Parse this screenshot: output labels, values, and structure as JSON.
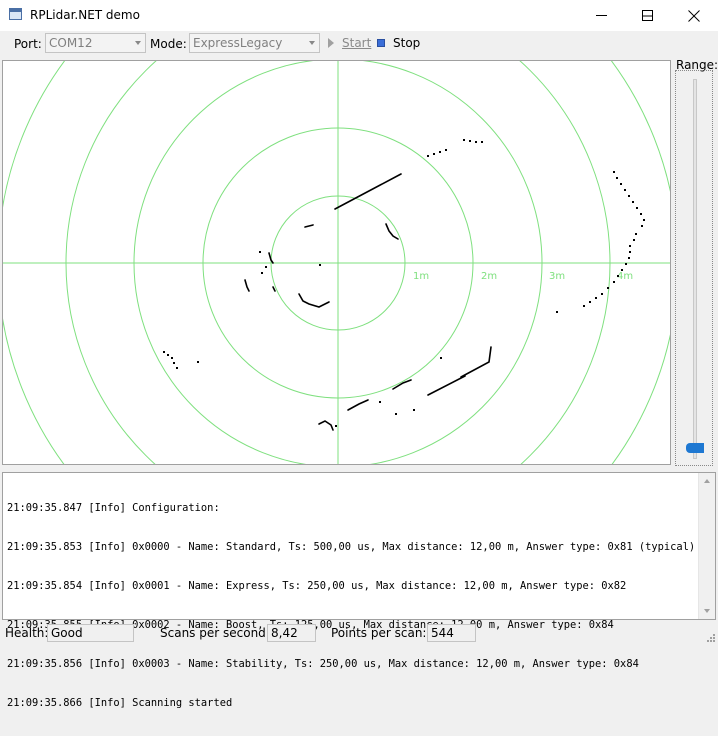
{
  "window": {
    "title": "RPLidar.NET demo",
    "icon": "app-window-icon"
  },
  "toolbar": {
    "port_label": "Port:",
    "port_value": "COM12",
    "mode_label": "Mode:",
    "mode_value": "ExpressLegacy",
    "start_label": "Start",
    "stop_label": "Stop"
  },
  "plot": {
    "ring_labels": [
      "1m",
      "2m",
      "3m",
      "4m"
    ],
    "grid_color": "#7fe07f"
  },
  "range": {
    "label": "Range:",
    "thumb_color": "#1e78d2"
  },
  "log": {
    "lines": [
      "21:09:35.847 [Info] Configuration:",
      "21:09:35.853 [Info] 0x0000 - Name: Standard, Ts: 500,00 us, Max distance: 12,00 m, Answer type: 0x81 (typical)",
      "21:09:35.854 [Info] 0x0001 - Name: Express, Ts: 250,00 us, Max distance: 12,00 m, Answer type: 0x82",
      "21:09:35.855 [Info] 0x0002 - Name: Boost, Ts: 125,00 us, Max distance: 12,00 m, Answer type: 0x84",
      "21:09:35.856 [Info] 0x0003 - Name: Stability, Ts: 250,00 us, Max distance: 12,00 m, Answer type: 0x84",
      "21:09:35.866 [Info] Scanning started"
    ]
  },
  "status": {
    "health_label": "Health:",
    "health_value": "Good",
    "sps_label": "Scans per second:",
    "sps_value": "8,42",
    "pps_label": "Points per scan:",
    "pps_value": "544"
  }
}
